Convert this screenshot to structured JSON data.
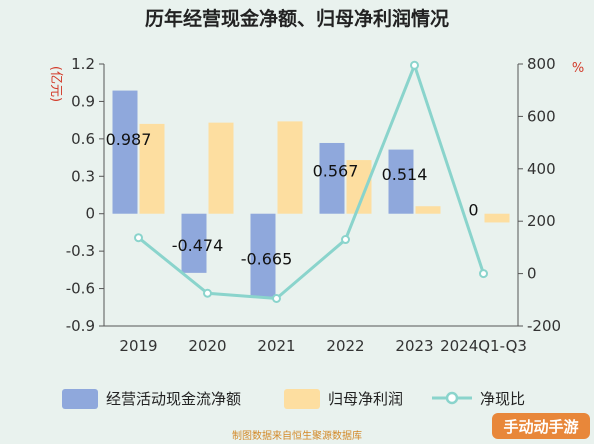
{
  "chart_data": {
    "type": "bar",
    "title": "历年经营现金净额、归母净利润情况",
    "categories": [
      "2019",
      "2020",
      "2021",
      "2022",
      "2023",
      "2024Q1-Q3"
    ],
    "left_axis": {
      "unit": "(亿元)",
      "ylim": [
        -0.9,
        1.2
      ],
      "ticks": [
        "1.2",
        "0.9",
        "0.6",
        "0.3",
        "0",
        "-0.3",
        "-0.6",
        "-0.9"
      ]
    },
    "right_axis": {
      "unit": "%",
      "ylim": [
        -200,
        800
      ],
      "ticks": [
        "800",
        "600",
        "400",
        "200",
        "0",
        "-200"
      ]
    },
    "series": [
      {
        "name": "经营活动现金流净额",
        "type": "bar",
        "axis": "left",
        "color": "#8fa8dc",
        "values": [
          0.987,
          -0.474,
          -0.665,
          0.567,
          0.514,
          0
        ],
        "labels": [
          "0.987",
          "-0.474",
          "-0.665",
          "0.567",
          "0.514",
          "0"
        ]
      },
      {
        "name": "归母净利润",
        "type": "bar",
        "axis": "left",
        "color": "#fddea0",
        "values": [
          0.72,
          0.73,
          0.74,
          0.43,
          0.06,
          -0.07
        ]
      },
      {
        "name": "净现比",
        "type": "line",
        "axis": "right",
        "color": "#8ad4cc",
        "values": [
          137,
          -75,
          -95,
          130,
          795,
          0
        ]
      }
    ],
    "legend_position": "bottom",
    "grid": false
  },
  "footer": "制图数据来自恒生聚源数据库",
  "watermark": "手动动手游"
}
